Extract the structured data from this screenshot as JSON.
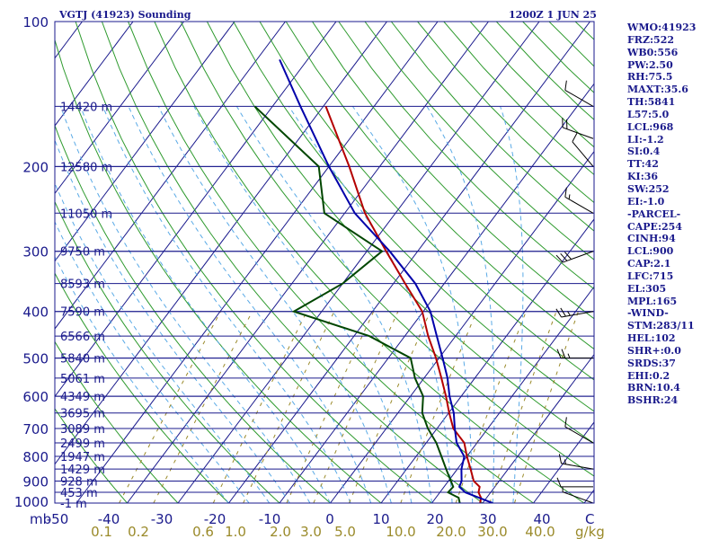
{
  "header": {
    "station": "VGTJ (41923) Sounding",
    "time": "1200Z  1 JUN 25"
  },
  "indices": [
    "WMO:41923",
    "FRZ:522",
    "WB0:556",
    "PW:2.50",
    "RH:75.5",
    "MAXT:35.6",
    "TH:5841",
    "L57:5.0",
    "LCL:968",
    "LI:-1.2",
    "SI:0.4",
    "TT:42",
    "KI:36",
    "SW:252",
    "EI:-1.0",
    "-PARCEL-",
    "CAPE:254",
    "CINH:94",
    "LCL:900",
    "CAP:2.1",
    "LFC:715",
    "EL:305",
    "MPL:165",
    "-WIND-",
    "STM:283/11",
    "HEL:102",
    "SHR+:0.0",
    "SRDS:37",
    "EHI:0.2",
    "BRN:10.4",
    "BSHR:24"
  ],
  "colors": {
    "frame": "#1a1a8c",
    "isotherm": "#1a1a8c",
    "dry_adiabat": "#2e9a2e",
    "moist_adiabat": "#5aaae6",
    "mixing_ratio": "#9a8a2a",
    "temperature": "#b40000",
    "dewpoint": "#004600",
    "parcel": "#0000aa"
  },
  "chart_data": {
    "type": "skew-t",
    "xlabel_unit": "°C",
    "ylabel_unit": "mb",
    "pressure_axis": {
      "labels": [
        100,
        200,
        300,
        400,
        500,
        600,
        700,
        800,
        900,
        1000
      ],
      "range": [
        1000,
        100
      ],
      "scale": "log"
    },
    "temperature_axis": {
      "labels": [
        "-50",
        "-40",
        "-30",
        "-20",
        "-10",
        "0",
        "10",
        "20",
        "30",
        "40"
      ],
      "unit_label": "C"
    },
    "mixing_ratio_axis": {
      "labels": [
        "0.1",
        "0.2",
        "0.6",
        "1.0",
        "2.0",
        "3.0",
        "5.0",
        "10.0",
        "20.0",
        "30.0",
        "40.0"
      ],
      "unit_label": "g/kg"
    },
    "height_levels": [
      {
        "p": 150,
        "label": "14420 m"
      },
      {
        "p": 200,
        "label": "12580 m"
      },
      {
        "p": 250,
        "label": "11050 m"
      },
      {
        "p": 300,
        "label": "9750 m"
      },
      {
        "p": 350,
        "label": "8593 m"
      },
      {
        "p": 400,
        "label": "7590 m"
      },
      {
        "p": 450,
        "label": "6566 m"
      },
      {
        "p": 500,
        "label": "5840 m"
      },
      {
        "p": 550,
        "label": "5061 m"
      },
      {
        "p": 600,
        "label": "4349 m"
      },
      {
        "p": 650,
        "label": "3695 m"
      },
      {
        "p": 700,
        "label": "3089 m"
      },
      {
        "p": 750,
        "label": "2499 m"
      },
      {
        "p": 800,
        "label": "1947 m"
      },
      {
        "p": 850,
        "label": "1429 m"
      },
      {
        "p": 900,
        "label": "928 m"
      },
      {
        "p": 950,
        "label": "453 m"
      },
      {
        "p": 1000,
        "label": "-1 m"
      }
    ],
    "series": [
      {
        "key": "temperature",
        "points": [
          [
            1000,
            29.5
          ],
          [
            975,
            28.9
          ],
          [
            950,
            27.6
          ],
          [
            925,
            27.0
          ],
          [
            900,
            25.0
          ],
          [
            850,
            22.6
          ],
          [
            800,
            20.0
          ],
          [
            750,
            17.5
          ],
          [
            700,
            13.2
          ],
          [
            650,
            10.1
          ],
          [
            600,
            7.0
          ],
          [
            550,
            3.4
          ],
          [
            500,
            -0.6
          ],
          [
            450,
            -5.4
          ],
          [
            400,
            -10.2
          ],
          [
            350,
            -17.7
          ],
          [
            300,
            -26.2
          ],
          [
            250,
            -36.0
          ],
          [
            200,
            -46.0
          ],
          [
            150,
            -59.5
          ]
        ]
      },
      {
        "key": "dewpoint",
        "points": [
          [
            1000,
            25.5
          ],
          [
            975,
            24.5
          ],
          [
            950,
            21.6
          ],
          [
            925,
            21.8
          ],
          [
            900,
            20.5
          ],
          [
            850,
            17.8
          ],
          [
            800,
            15.0
          ],
          [
            750,
            12.0
          ],
          [
            700,
            8.2
          ],
          [
            650,
            4.8
          ],
          [
            600,
            2.5
          ],
          [
            550,
            -1.8
          ],
          [
            500,
            -5.6
          ],
          [
            450,
            -17.0
          ],
          [
            400,
            -35.5
          ],
          [
            350,
            -30.0
          ],
          [
            300,
            -27.0
          ],
          [
            250,
            -44.0
          ],
          [
            200,
            -52.0
          ],
          [
            150,
            -73.5
          ]
        ]
      },
      {
        "key": "parcel",
        "points": [
          [
            1000,
            32.0
          ],
          [
            950,
            25.0
          ],
          [
            925,
            23.0
          ],
          [
            900,
            22.6
          ],
          [
            850,
            20.8
          ],
          [
            800,
            19.5
          ],
          [
            750,
            16.0
          ],
          [
            700,
            13.5
          ],
          [
            650,
            11.0
          ],
          [
            600,
            7.7
          ],
          [
            550,
            4.6
          ],
          [
            500,
            0.7
          ],
          [
            450,
            -3.7
          ],
          [
            400,
            -8.6
          ],
          [
            350,
            -15.7
          ],
          [
            300,
            -25.5
          ],
          [
            250,
            -38.0
          ],
          [
            200,
            -50.0
          ],
          [
            150,
            -64.5
          ],
          [
            120,
            -75.5
          ]
        ]
      }
    ],
    "wind": [
      {
        "p": 1000,
        "dir": 290,
        "spd": 5
      },
      {
        "p": 925,
        "dir": 270,
        "spd": 10
      },
      {
        "p": 850,
        "dir": 280,
        "spd": 15
      },
      {
        "p": 750,
        "dir": 300,
        "spd": 10
      },
      {
        "p": 500,
        "dir": 270,
        "spd": 25
      },
      {
        "p": 400,
        "dir": 260,
        "spd": 25
      },
      {
        "p": 300,
        "dir": 250,
        "spd": 30
      },
      {
        "p": 250,
        "dir": 300,
        "spd": 15
      },
      {
        "p": 200,
        "dir": 320,
        "spd": 10
      },
      {
        "p": 175,
        "dir": 290,
        "spd": 20
      },
      {
        "p": 150,
        "dir": 300,
        "spd": 10
      }
    ]
  }
}
